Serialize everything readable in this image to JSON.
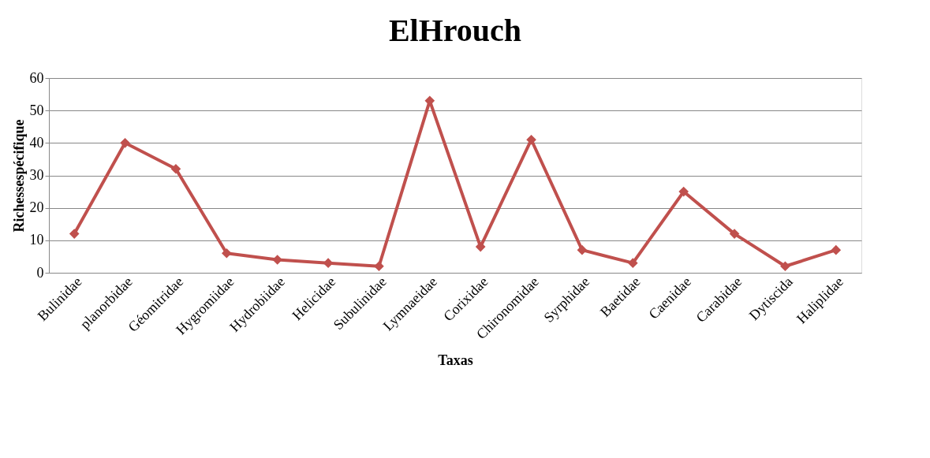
{
  "chart_data": {
    "type": "line",
    "title": "ElHrouch",
    "xlabel": "Taxas",
    "ylabel": "Richessespécifique",
    "categories": [
      "Bulinidae",
      "planorbidae",
      "Géomitridae",
      "Hygromiidae",
      "Hydrobiidae",
      "Helicidae",
      "Subulinidae",
      "Lymnaeidae",
      "Corixidae",
      "Chironomidae",
      "Syrphidae",
      "Baetidae",
      "Caenidae",
      "Carabidae",
      "Dytiscida",
      "Haliplidae"
    ],
    "series": [
      {
        "color": "#c0504d",
        "values": [
          12,
          40,
          32,
          6,
          4,
          3,
          2,
          53,
          8,
          41,
          7,
          3,
          25,
          12,
          2,
          7
        ]
      }
    ],
    "ylim": [
      0,
      60
    ],
    "yticks": [
      0,
      10,
      20,
      30,
      40,
      50,
      60
    ],
    "grid": "y",
    "legend": false,
    "marker": "diamond",
    "line_style": "solid"
  }
}
